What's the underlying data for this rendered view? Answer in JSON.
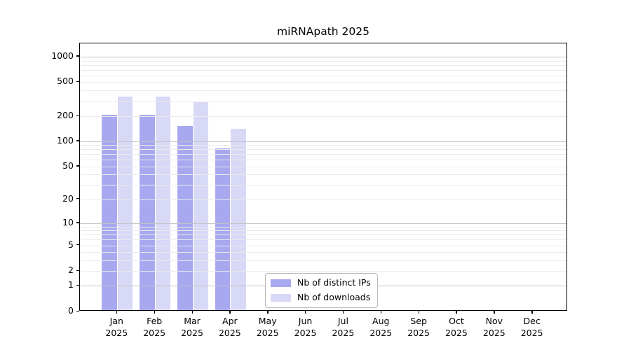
{
  "title": "miRNApath 2025",
  "chart_data": {
    "type": "bar",
    "title": "miRNApath 2025",
    "xlabel": "",
    "ylabel": "",
    "y_scale": "log(value+1)",
    "ylim": [
      0,
      1400
    ],
    "yticks": [
      0,
      1,
      2,
      5,
      10,
      20,
      50,
      100,
      200,
      500,
      1000
    ],
    "grid": true,
    "legend_position": "lower center",
    "categories": [
      "Jan",
      "Feb",
      "Mar",
      "Apr",
      "May",
      "Jun",
      "Jul",
      "Aug",
      "Sep",
      "Oct",
      "Nov",
      "Dec"
    ],
    "year_label": "2025",
    "series": [
      {
        "name": "Nb of distinct IPs",
        "color": "#a8a8f0",
        "values": [
          200,
          198,
          145,
          79,
          0,
          0,
          0,
          0,
          0,
          0,
          0,
          0
        ]
      },
      {
        "name": "Nb of downloads",
        "color": "#d8d8f7",
        "values": [
          324,
          326,
          278,
          135,
          0,
          0,
          0,
          0,
          0,
          0,
          0,
          0
        ]
      }
    ]
  }
}
